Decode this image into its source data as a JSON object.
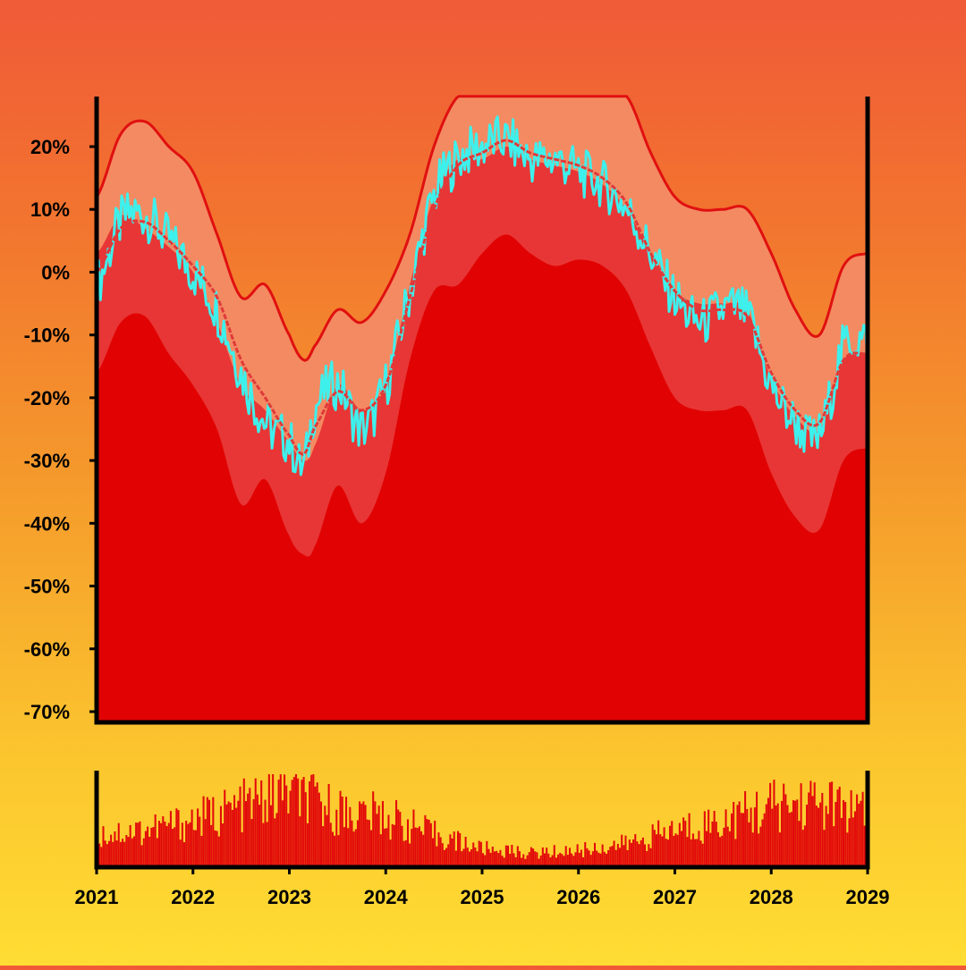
{
  "colors": {
    "band_outer": "#f48a62",
    "band_inner": "#e83636",
    "band_low": "#e10303",
    "price_line": "#3ef0ec",
    "envelope_line": "#e01010",
    "moving_average": "#e03a3a",
    "volume": "#e20a0a",
    "axis": "#000000"
  },
  "chart_data": [
    {
      "type": "area",
      "panel": "price",
      "grid": false,
      "legend": "none",
      "xlim": [
        2021,
        2029
      ],
      "ylim": [
        -70,
        28
      ],
      "y_unit": "%",
      "x_ticks": [
        "2021",
        "2022",
        "2023",
        "2024",
        "2025",
        "2026",
        "2027",
        "2028",
        "2029"
      ],
      "y_ticks": [
        "20%",
        "10%",
        "0%",
        "-10%",
        "-20%",
        "-30%",
        "-40%",
        "-50%",
        "-60%",
        "-70%"
      ],
      "x": [
        2021.0,
        2021.25,
        2021.5,
        2021.75,
        2022.0,
        2022.25,
        2022.5,
        2022.75,
        2023.0,
        2023.15,
        2023.25,
        2023.5,
        2023.75,
        2024.0,
        2024.25,
        2024.5,
        2024.75,
        2025.0,
        2025.25,
        2025.5,
        2025.75,
        2026.0,
        2026.25,
        2026.5,
        2026.75,
        2027.0,
        2027.25,
        2027.5,
        2027.75,
        2028.0,
        2028.25,
        2028.5,
        2028.75,
        2029.0
      ],
      "series": [
        {
          "role": "upper-envelope",
          "values": [
            12,
            22,
            24,
            20,
            16,
            6,
            -4,
            -2,
            -10,
            -14,
            -12,
            -6,
            -8,
            -3,
            6,
            20,
            28,
            28,
            28,
            28,
            28,
            28,
            28,
            28,
            19,
            12,
            10,
            10,
            10,
            3,
            -6,
            -10,
            1,
            3
          ]
        },
        {
          "role": "inner-band-top",
          "values": [
            3,
            9,
            7,
            4,
            0,
            -8,
            -18,
            -22,
            -27,
            -30,
            -28,
            -18,
            -22,
            -18,
            -2,
            12,
            18,
            18,
            20,
            18,
            17,
            16,
            14,
            10,
            3,
            -3,
            -5,
            -5,
            -6,
            -17,
            -23,
            -25,
            -14,
            -13
          ]
        },
        {
          "role": "inner-band-bottom",
          "values": [
            -16,
            -8,
            -7,
            -13,
            -18,
            -25,
            -37,
            -33,
            -42,
            -45,
            -44,
            -34,
            -40,
            -32,
            -14,
            -3,
            -2,
            3,
            6,
            3,
            1,
            2,
            1,
            -3,
            -12,
            -20,
            -22,
            -22,
            -22,
            -32,
            -39,
            -41,
            -30,
            -28
          ]
        },
        {
          "role": "price",
          "values": [
            -2,
            8,
            9,
            5,
            0,
            -6,
            -16,
            -24,
            -27,
            -31,
            -22,
            -18,
            -25,
            -18,
            -3,
            12,
            18,
            20,
            21,
            18,
            18,
            16,
            14,
            10,
            3,
            -4,
            -8,
            -6,
            -7,
            -18,
            -24,
            -26,
            -12,
            -11
          ]
        },
        {
          "role": "moving-average",
          "values": [
            0,
            7,
            8,
            5,
            1,
            -4,
            -14,
            -20,
            -26,
            -29,
            -25,
            -19,
            -22,
            -18,
            -4,
            10,
            17,
            19,
            21,
            19,
            18,
            17,
            15,
            11,
            3,
            -3,
            -6,
            -6,
            -7,
            -16,
            -22,
            -24,
            -14,
            -13
          ]
        }
      ]
    },
    {
      "type": "bar",
      "panel": "volume",
      "xlim": [
        2021,
        2029
      ],
      "x": [
        2021.0,
        2021.5,
        2022.0,
        2022.5,
        2023.0,
        2023.5,
        2024.0,
        2024.5,
        2025.0,
        2025.5,
        2026.0,
        2026.5,
        2027.0,
        2027.5,
        2028.0,
        2028.5,
        2029.0
      ],
      "values": [
        0.35,
        0.4,
        0.5,
        0.65,
        0.8,
        0.6,
        0.55,
        0.35,
        0.2,
        0.15,
        0.18,
        0.25,
        0.4,
        0.5,
        0.65,
        0.7,
        0.55
      ]
    }
  ]
}
